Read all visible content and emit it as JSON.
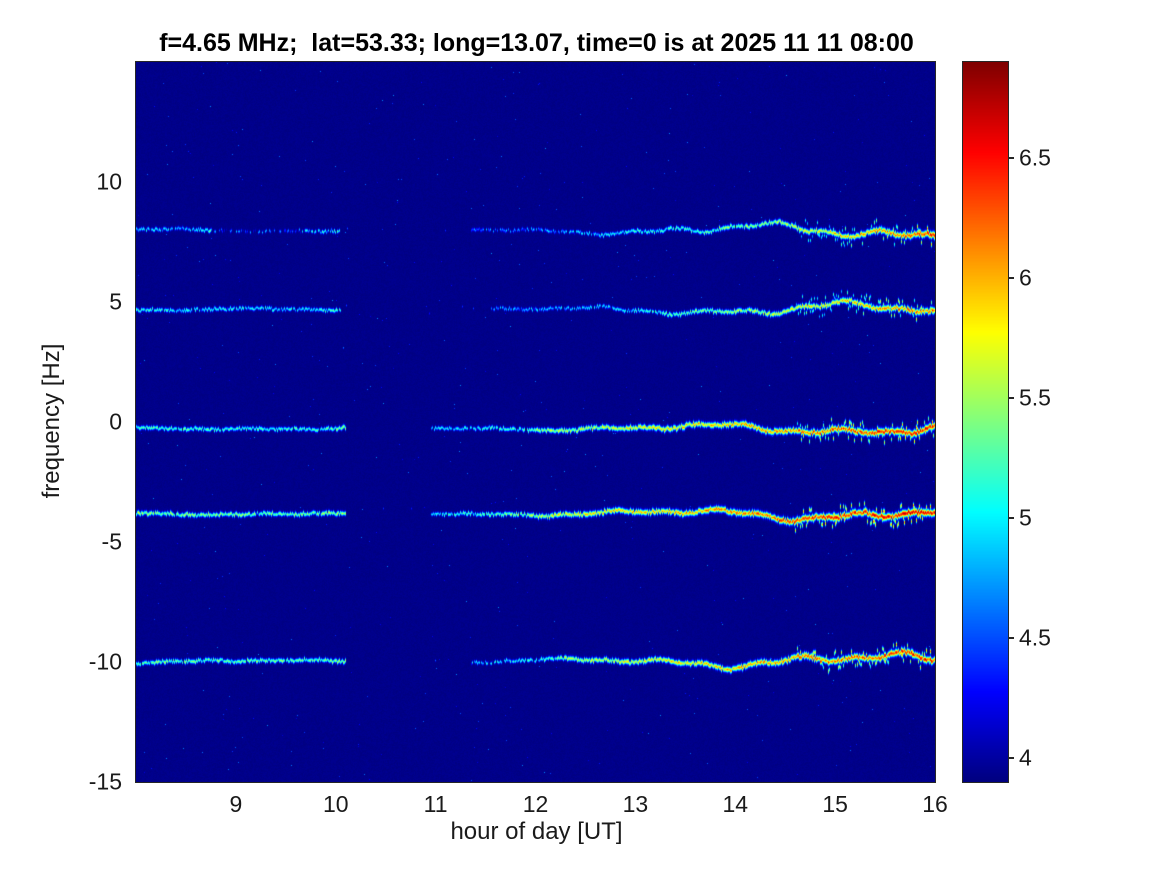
{
  "chart_data": {
    "type": "heatmap",
    "title": "f=4.65 MHz;  lat=53.33; long=13.07, time=0 is at 2025 11 11 08:00",
    "xlabel": "hour of day [UT]",
    "ylabel": "frequency [Hz]",
    "xlim": [
      8,
      16
    ],
    "ylim": [
      -15,
      15
    ],
    "x_ticks": [
      9,
      10,
      11,
      12,
      13,
      14,
      15,
      16
    ],
    "y_ticks": [
      10,
      5,
      0,
      -5,
      -10,
      -15
    ],
    "grid": false,
    "colormap": "jet",
    "colorbar": {
      "min": 3.9,
      "max": 6.9,
      "ticks": [
        4,
        4.5,
        5,
        5.5,
        6,
        6.5
      ],
      "position": "right"
    },
    "background_value": 3.93,
    "spectral_lines": [
      {
        "name": "line-plus8Hz",
        "freq": 8.0,
        "wiggle_end": 0.45,
        "segments": [
          [
            8.0,
            8.75,
            4.9,
            4.9,
            0.85
          ],
          [
            8.75,
            9.7,
            4.6,
            4.6,
            0.35
          ],
          [
            9.7,
            10.05,
            4.9,
            5.0,
            0.8
          ],
          [
            11.35,
            12.6,
            4.55,
            4.9,
            0.7
          ],
          [
            12.6,
            14.4,
            4.9,
            5.5,
            0.95
          ],
          [
            14.4,
            16.0,
            5.5,
            6.35,
            1.0
          ]
        ]
      },
      {
        "name": "line-plus4p7Hz",
        "freq": 4.7,
        "wiggle_end": 0.4,
        "segments": [
          [
            8.0,
            10.05,
            5.05,
            4.95,
            0.95
          ],
          [
            11.55,
            13.3,
            4.7,
            5.1,
            0.85
          ],
          [
            13.3,
            16.0,
            5.2,
            6.2,
            1.0
          ]
        ]
      },
      {
        "name": "line-0Hz",
        "freq": -0.25,
        "wiggle_end": 0.35,
        "segments": [
          [
            8.0,
            10.1,
            5.25,
            5.1,
            0.97
          ],
          [
            10.95,
            12.0,
            4.85,
            5.3,
            0.9
          ],
          [
            12.0,
            16.0,
            5.45,
            6.45,
            1.0
          ]
        ]
      },
      {
        "name": "line-minus3p8Hz",
        "freq": -3.8,
        "wiggle_end": 0.4,
        "segments": [
          [
            8.0,
            10.1,
            5.45,
            5.3,
            0.98
          ],
          [
            10.95,
            12.0,
            5.0,
            5.5,
            0.9
          ],
          [
            12.0,
            16.0,
            5.6,
            6.6,
            1.0
          ]
        ]
      },
      {
        "name": "line-minus10Hz",
        "freq": -9.95,
        "wiggle_end": 0.45,
        "segments": [
          [
            8.0,
            10.1,
            5.35,
            5.25,
            0.97
          ],
          [
            11.35,
            12.3,
            4.8,
            5.3,
            0.8
          ],
          [
            12.3,
            16.0,
            5.55,
            6.4,
            1.0
          ]
        ]
      }
    ]
  }
}
